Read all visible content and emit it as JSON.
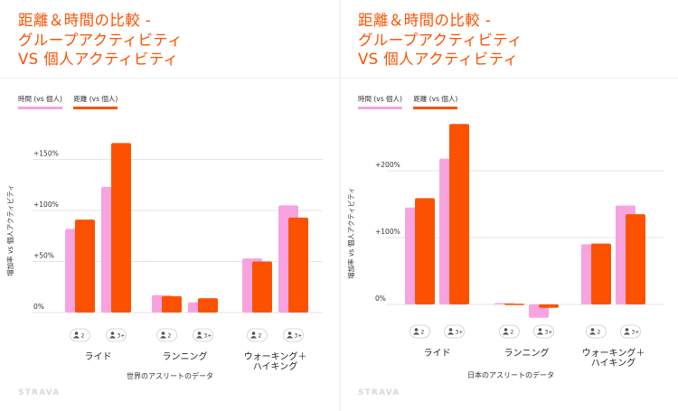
{
  "colors": {
    "accent": "#fc5200",
    "time": "#f7a3e0",
    "distance": "#fc5200",
    "grid": "#e6e6e6"
  },
  "panels": [
    {
      "title_lines": [
        "距離＆時間の比較 -",
        "グループアクティビティ",
        "VS 個人アクティビティ"
      ],
      "legend": [
        "時間 (vs 個人)",
        "距離 (vs 個人)"
      ],
      "brand": "STRAVA"
    },
    {
      "title_lines": [
        "距離＆時間の比較 -",
        "グループアクティビティ",
        "VS 個人アクティビティ"
      ],
      "legend": [
        "時間 (vs 個人)",
        "距離 (vs 個人)"
      ],
      "brand": "STRAVA"
    }
  ],
  "chart_data": [
    {
      "type": "bar",
      "ylabel": "増加率 vs 個人アクティビティ",
      "xlabel": "世界のアスリートのデータ",
      "yticks": [
        "0%",
        "+50%",
        "+100%",
        "+150%"
      ],
      "ylim": [
        0,
        170
      ],
      "categories": [
        "ライド",
        "ランニング",
        "ウォーキング＋\nハイキング"
      ],
      "group_size_labels": [
        "2",
        "3+"
      ],
      "series": [
        {
          "name": "時間 (vs 個人)",
          "values": [
            [
              82,
              123
            ],
            [
              17,
              10
            ],
            [
              53,
              105
            ]
          ]
        },
        {
          "name": "距離 (vs 個人)",
          "values": [
            [
              91,
              166
            ],
            [
              16,
              14
            ],
            [
              50,
              93
            ]
          ]
        }
      ],
      "grid": true,
      "legend_position": "top-left"
    },
    {
      "type": "bar",
      "ylabel": "増加率 vs 個人アクティビティ",
      "xlabel": "日本のアスリートのデータ",
      "yticks": [
        "0%",
        "+100%",
        "+200%"
      ],
      "ylim": [
        -25,
        280
      ],
      "categories": [
        "ライド",
        "ランニング",
        "ウォーキング＋\nハイキング"
      ],
      "group_size_labels": [
        "2",
        "3+"
      ],
      "series": [
        {
          "name": "時間 (vs 個人)",
          "values": [
            [
              145,
              218
            ],
            [
              2,
              -20
            ],
            [
              90,
              148
            ]
          ]
        },
        {
          "name": "距離 (vs 個人)",
          "values": [
            [
              159,
              270
            ],
            [
              1,
              -5
            ],
            [
              91,
              135
            ]
          ]
        }
      ],
      "grid": true,
      "legend_position": "top-left"
    }
  ]
}
